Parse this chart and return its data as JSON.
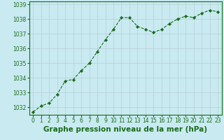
{
  "x": [
    0,
    1,
    2,
    3,
    4,
    5,
    6,
    7,
    8,
    9,
    10,
    11,
    12,
    13,
    14,
    15,
    16,
    17,
    18,
    19,
    20,
    21,
    22,
    23
  ],
  "y": [
    1031.7,
    1032.1,
    1032.3,
    1032.9,
    1033.8,
    1033.9,
    1034.5,
    1035.0,
    1035.8,
    1036.6,
    1037.3,
    1038.1,
    1038.1,
    1037.5,
    1037.3,
    1037.1,
    1037.3,
    1037.7,
    1038.0,
    1038.2,
    1038.1,
    1038.4,
    1038.6,
    1038.5
  ],
  "line_color": "#1a6b1a",
  "marker_color": "#1a6b1a",
  "bg_color": "#c8eaf0",
  "grid_color": "#b8cfd8",
  "xlabel": "Graphe pression niveau de la mer (hPa)",
  "xlabel_color": "#1a6b1a",
  "tick_color": "#1a6b1a",
  "ylim": [
    1031.5,
    1039.2
  ],
  "yticks": [
    1032,
    1033,
    1034,
    1035,
    1036,
    1037,
    1038,
    1039
  ],
  "xticks": [
    0,
    1,
    2,
    3,
    4,
    5,
    6,
    7,
    8,
    9,
    10,
    11,
    12,
    13,
    14,
    15,
    16,
    17,
    18,
    19,
    20,
    21,
    22,
    23
  ],
  "tick_fontsize": 5.5,
  "xlabel_fontsize": 7.5,
  "linewidth": 0.8,
  "markersize": 2.2
}
